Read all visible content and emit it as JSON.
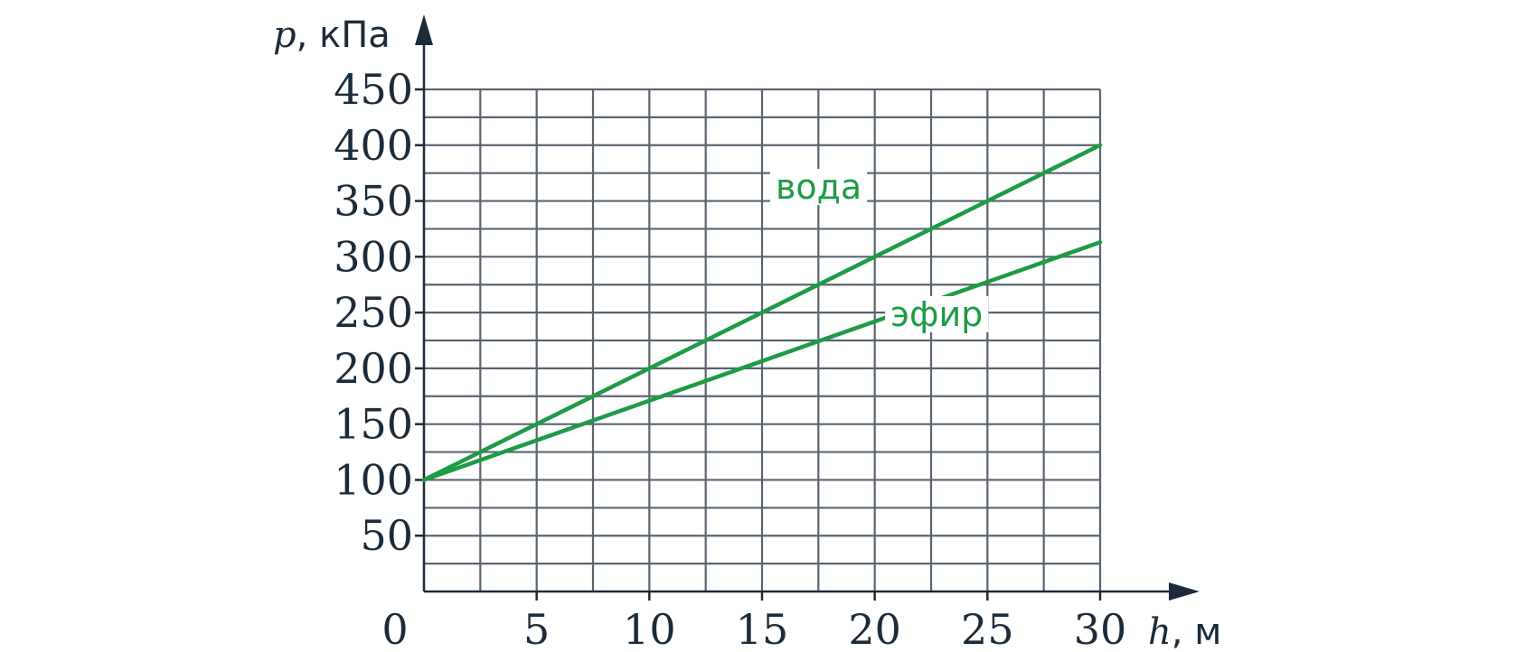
{
  "chart_data": {
    "type": "line",
    "title": "",
    "x_axis": {
      "var": "h",
      "unit": "м",
      "range": [
        0,
        30
      ],
      "ticks": [
        0,
        5,
        10,
        15,
        20,
        25,
        30
      ],
      "minor_step": 2.5
    },
    "y_axis": {
      "var": "p",
      "unit": "кПа",
      "range": [
        0,
        450
      ],
      "ticks": [
        50,
        100,
        150,
        200,
        250,
        300,
        350,
        400,
        450
      ],
      "minor_step": 25
    },
    "grid": true,
    "series": [
      {
        "name": "вода",
        "color": "#1e9b45",
        "x": [
          0,
          30
        ],
        "y": [
          100,
          400
        ],
        "label_at": [
          15.6,
          352
        ]
      },
      {
        "name": "эфир",
        "color": "#1e9b45",
        "x": [
          0,
          30
        ],
        "y": [
          100,
          313
        ],
        "label_at": [
          20.7,
          238
        ]
      }
    ]
  },
  "colors": {
    "axis": "#1c2b39",
    "grid": "#5a6470",
    "series": "#1e9b45"
  }
}
